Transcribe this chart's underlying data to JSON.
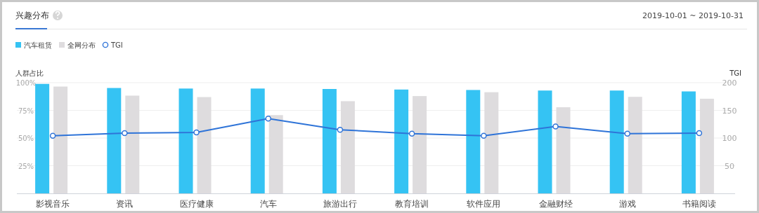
{
  "chart_data": {
    "type": "bar",
    "title": "兴趣分布",
    "annotations": [
      "2019-10-01 ~ 2019-10-31"
    ],
    "ylabel": "人群占比",
    "y2label": "TGI",
    "categories": [
      "影视音乐",
      "资讯",
      "医疗健康",
      "汽车",
      "旅游出行",
      "教育培训",
      "软件应用",
      "金融财经",
      "游戏",
      "书籍阅读"
    ],
    "series": [
      {
        "name": "汽车租赁",
        "color": "#35c3f3",
        "values": [
          98.9,
          95.2,
          94.7,
          94.7,
          94.3,
          93.8,
          93.4,
          92.9,
          92.9,
          92.1
        ]
      },
      {
        "name": "全网分布",
        "color": "#dedcde",
        "values": [
          96.5,
          88.3,
          87.0,
          70.7,
          83.3,
          87.9,
          91.4,
          77.8,
          87.2,
          85.5
        ]
      },
      {
        "name": "TGI",
        "type": "line",
        "axis": "y2",
        "color": "#2f74d8",
        "marker": "circle",
        "values": [
          104,
          109,
          110,
          135,
          115,
          108,
          104,
          121,
          108,
          109
        ]
      }
    ],
    "ylim": [
      0,
      100
    ],
    "yticks": [
      {
        "value": 25,
        "label": "25%"
      },
      {
        "value": 50,
        "label": "50%"
      },
      {
        "value": 75,
        "label": "75%"
      },
      {
        "value": 100,
        "label": "100%"
      }
    ],
    "y2lim": [
      0,
      200
    ],
    "y2ticks": [
      50,
      100,
      150,
      200
    ],
    "grid": "y",
    "legend": "top left"
  }
}
